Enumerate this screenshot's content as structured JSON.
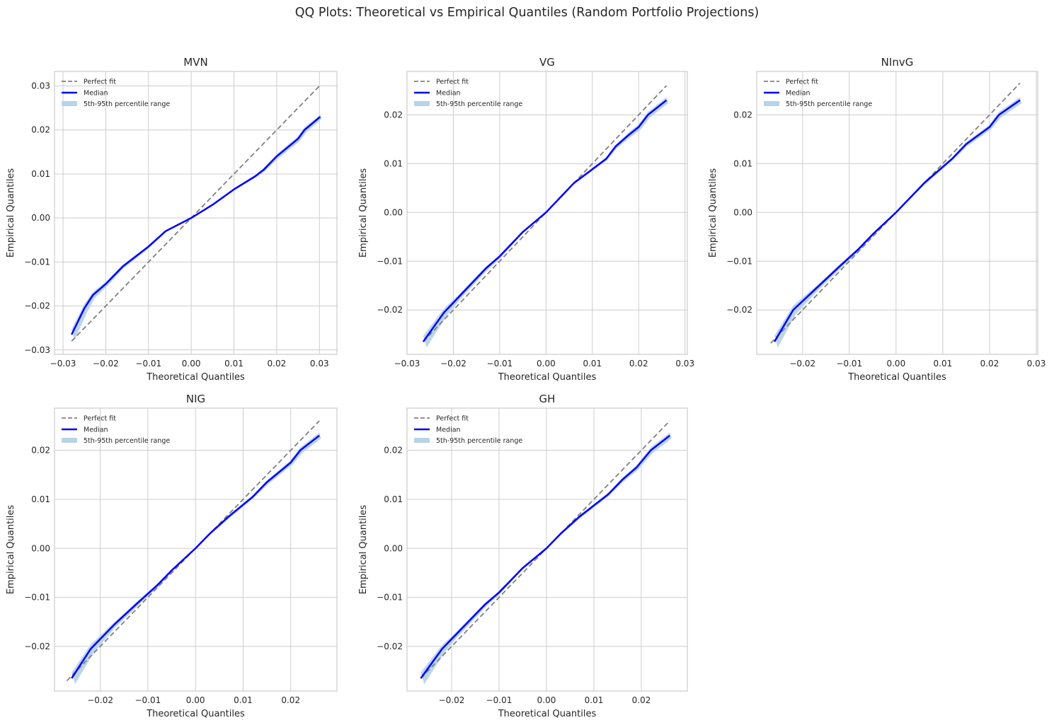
{
  "suptitle": "QQ Plots: Theoretical vs Empirical Quantiles (Random Portfolio Projections)",
  "colors": {
    "median": "#0000ff",
    "perfect_fit": "#808080",
    "band": "#b8d3e8",
    "grid": "#cccccc"
  },
  "chart_data": [
    {
      "type": "line",
      "title": "MVN",
      "xlabel": "Theoretical Quantiles",
      "ylabel": "Empirical Quantiles",
      "xlim": [
        -0.032,
        0.0341
      ],
      "ylim": [
        -0.031,
        0.0333
      ],
      "grid": true,
      "legend": "upper-left",
      "xticks": [
        -0.03,
        -0.02,
        -0.01,
        0.0,
        0.01,
        0.02,
        0.03
      ],
      "xtick_labels": [
        "−0.03",
        "−0.02",
        "−0.01",
        "0.00",
        "0.01",
        "0.02",
        "0.03"
      ],
      "yticks": [
        -0.03,
        -0.02,
        -0.01,
        0.0,
        0.01,
        0.02,
        0.03
      ],
      "ytick_labels": [
        "−0.03",
        "−0.02",
        "−0.01",
        "0.00",
        "0.01",
        "0.02",
        "0.03"
      ],
      "legend_entries": [
        "Perfect fit",
        "Median",
        "5th-95th percentile range"
      ],
      "perfect_fit": [
        -0.028,
        0.0302
      ],
      "x": [
        -0.028,
        -0.025,
        -0.023,
        -0.02,
        -0.016,
        -0.01,
        -0.006,
        0.0,
        0.005,
        0.01,
        0.015,
        0.017,
        0.02,
        0.025,
        0.0265,
        0.0302
      ],
      "median": [
        -0.0265,
        -0.0205,
        -0.0175,
        -0.015,
        -0.011,
        -0.0065,
        -0.003,
        0.0,
        0.003,
        0.0065,
        0.0095,
        0.011,
        0.014,
        0.018,
        0.02,
        0.023
      ],
      "band_spread": [
        0.0012,
        0.001,
        0.0007,
        0.0005,
        0.0004,
        0.0003,
        0.0002,
        0.0001,
        0.0002,
        0.0002,
        0.0003,
        0.0004,
        0.0005,
        0.0006,
        0.0006,
        0.0005
      ]
    },
    {
      "type": "line",
      "title": "VG",
      "xlabel": "Theoretical Quantiles",
      "ylabel": "Empirical Quantiles",
      "xlim": [
        -0.03,
        0.0305
      ],
      "ylim": [
        -0.0291,
        0.0289
      ],
      "grid": true,
      "legend": "upper-left",
      "xticks": [
        -0.03,
        -0.02,
        -0.01,
        0.0,
        0.01,
        0.02,
        0.03
      ],
      "xtick_labels": [
        "−0.03",
        "−0.02",
        "−0.01",
        "0.00",
        "0.01",
        "0.02",
        "0.03"
      ],
      "yticks": [
        -0.02,
        -0.01,
        0.0,
        0.01,
        0.02
      ],
      "ytick_labels": [
        "−0.02",
        "−0.01",
        "0.00",
        "0.01",
        "0.02"
      ],
      "legend_entries": [
        "Perfect fit",
        "Median",
        "5th-95th percentile range"
      ],
      "perfect_fit": [
        -0.0265,
        0.026
      ],
      "x": [
        -0.0265,
        -0.022,
        -0.019,
        -0.013,
        -0.01,
        -0.005,
        0.0,
        0.003,
        0.006,
        0.013,
        0.015,
        0.018,
        0.02,
        0.022,
        0.026
      ],
      "median": [
        -0.0265,
        -0.0205,
        -0.0175,
        -0.0115,
        -0.009,
        -0.004,
        0.0,
        0.003,
        0.006,
        0.011,
        0.0135,
        0.016,
        0.0175,
        0.02,
        0.023
      ],
      "band_spread": [
        0.0012,
        0.0008,
        0.0005,
        0.0004,
        0.0003,
        0.0002,
        0.0001,
        0.0002,
        0.0002,
        0.0003,
        0.0004,
        0.0005,
        0.0006,
        0.0006,
        0.0006
      ]
    },
    {
      "type": "line",
      "title": "NInvG",
      "xlabel": "Theoretical Quantiles",
      "ylabel": "Empirical Quantiles",
      "xlim": [
        -0.0298,
        0.0303
      ],
      "ylim": [
        -0.0291,
        0.0289
      ],
      "grid": true,
      "legend": "upper-left",
      "xticks": [
        -0.02,
        -0.01,
        0.0,
        0.01,
        0.02,
        0.03
      ],
      "xtick_labels": [
        "−0.02",
        "−0.01",
        "0.00",
        "0.01",
        "0.02",
        "0.03"
      ],
      "yticks": [
        -0.02,
        -0.01,
        0.0,
        0.01,
        0.02
      ],
      "ytick_labels": [
        "−0.02",
        "−0.01",
        "0.00",
        "0.01",
        "0.02"
      ],
      "legend_entries": [
        "Perfect fit",
        "Median",
        "5th-95th percentile range"
      ],
      "perfect_fit": [
        -0.0268,
        0.0265
      ],
      "x": [
        -0.026,
        -0.022,
        -0.017,
        -0.012,
        -0.008,
        -0.005,
        0.0,
        0.003,
        0.006,
        0.012,
        0.015,
        0.02,
        0.022,
        0.0265
      ],
      "median": [
        -0.0265,
        -0.02,
        -0.0155,
        -0.011,
        -0.0075,
        -0.0045,
        0.0,
        0.003,
        0.006,
        0.011,
        0.014,
        0.0175,
        0.02,
        0.023
      ],
      "band_spread": [
        0.0012,
        0.0009,
        0.0005,
        0.0004,
        0.0003,
        0.0002,
        0.0001,
        0.0002,
        0.0003,
        0.0003,
        0.0004,
        0.0005,
        0.0006,
        0.0006
      ]
    },
    {
      "type": "line",
      "title": "NIG",
      "xlabel": "Theoretical Quantiles",
      "ylabel": "Empirical Quantiles",
      "xlim": [
        -0.0296,
        0.0297
      ],
      "ylim": [
        -0.0291,
        0.0286
      ],
      "grid": true,
      "legend": "upper-left",
      "xticks": [
        -0.02,
        -0.01,
        0.0,
        0.01,
        0.02
      ],
      "xtick_labels": [
        "−0.02",
        "−0.01",
        "0.00",
        "0.01",
        "0.02"
      ],
      "yticks": [
        -0.02,
        -0.01,
        0.0,
        0.01,
        0.02
      ],
      "ytick_labels": [
        "−0.02",
        "−0.01",
        "0.00",
        "0.01",
        "0.02"
      ],
      "legend_entries": [
        "Perfect fit",
        "Median",
        "5th-95th percentile range"
      ],
      "perfect_fit": [
        -0.027,
        0.026
      ],
      "x": [
        -0.026,
        -0.022,
        -0.017,
        -0.012,
        -0.008,
        -0.005,
        0.0,
        0.003,
        0.007,
        0.012,
        0.015,
        0.02,
        0.022,
        0.026
      ],
      "median": [
        -0.0265,
        -0.0205,
        -0.0155,
        -0.011,
        -0.0075,
        -0.0045,
        0.0,
        0.003,
        0.0065,
        0.0105,
        0.0135,
        0.0175,
        0.02,
        0.023
      ],
      "band_spread": [
        0.0012,
        0.0009,
        0.0005,
        0.0004,
        0.0003,
        0.0002,
        0.0001,
        0.0002,
        0.0003,
        0.0003,
        0.0004,
        0.0005,
        0.0006,
        0.0006
      ]
    },
    {
      "type": "line",
      "title": "GH",
      "xlabel": "Theoretical Quantiles",
      "ylabel": "Empirical Quantiles",
      "xlim": [
        -0.0294,
        0.0297
      ],
      "ylim": [
        -0.0291,
        0.0286
      ],
      "grid": true,
      "legend": "upper-left",
      "xticks": [
        -0.02,
        -0.01,
        0.0,
        0.01,
        0.02
      ],
      "xtick_labels": [
        "−0.02",
        "−0.01",
        "0.00",
        "0.01",
        "0.02"
      ],
      "yticks": [
        -0.02,
        -0.01,
        0.0,
        0.01,
        0.02
      ],
      "ytick_labels": [
        "−0.02",
        "−0.01",
        "0.00",
        "0.01",
        "0.02"
      ],
      "legend_entries": [
        "Perfect fit",
        "Median",
        "5th-95th percentile range"
      ],
      "perfect_fit": [
        -0.0265,
        0.026
      ],
      "x": [
        -0.0265,
        -0.022,
        -0.019,
        -0.013,
        -0.01,
        -0.005,
        0.0,
        0.003,
        0.007,
        0.013,
        0.016,
        0.019,
        0.022,
        0.026
      ],
      "median": [
        -0.0265,
        -0.0205,
        -0.0175,
        -0.0115,
        -0.009,
        -0.004,
        0.0,
        0.003,
        0.0065,
        0.011,
        0.014,
        0.0165,
        0.02,
        0.023
      ],
      "band_spread": [
        0.0012,
        0.0008,
        0.0005,
        0.0004,
        0.0003,
        0.0002,
        0.0001,
        0.0002,
        0.0003,
        0.0003,
        0.0004,
        0.0005,
        0.0006,
        0.0006
      ]
    }
  ]
}
